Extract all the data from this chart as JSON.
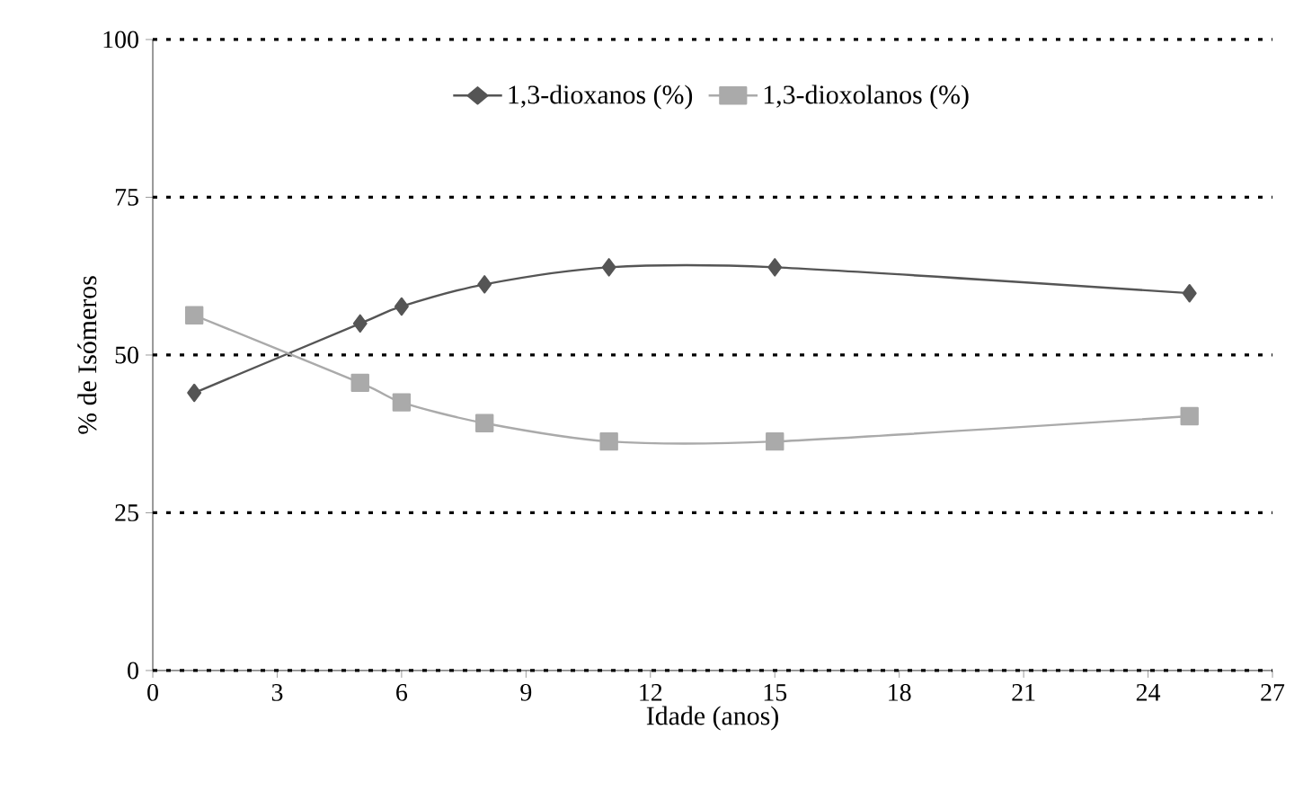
{
  "chart_data": {
    "type": "line",
    "xlabel": "Idade (anos)",
    "ylabel": "% de Isómeros",
    "x": [
      1,
      5,
      6,
      8,
      11,
      15,
      25
    ],
    "series": [
      {
        "name": "1,3-dioxanos (%)",
        "color": "#555555",
        "marker": "diamond",
        "values": [
          44.0,
          55.0,
          57.7,
          61.2,
          63.9,
          63.9,
          59.8
        ]
      },
      {
        "name": "1,3-dioxolanos (%)",
        "color": "#aaaaaa",
        "marker": "square",
        "values": [
          56.3,
          45.6,
          42.5,
          39.2,
          36.3,
          36.3,
          40.3
        ]
      }
    ],
    "xlim": [
      0,
      27
    ],
    "xticks": [
      0,
      3,
      6,
      9,
      12,
      15,
      18,
      21,
      24,
      27
    ],
    "ylim": [
      0,
      100
    ],
    "yticks": [
      0,
      25,
      50,
      75,
      100
    ],
    "grid": "y",
    "legend": "top",
    "line_style": "solid"
  }
}
